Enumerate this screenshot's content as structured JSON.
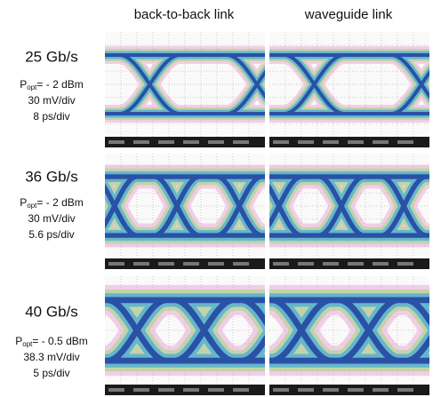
{
  "header": {
    "columns": [
      "back-to-back link",
      "waveguide link"
    ]
  },
  "rows": [
    {
      "rate": "25 Gb/s",
      "power_symbol": "P",
      "power_subscript": "opt",
      "power_value": "= - 2 dBm",
      "voltage_scale": "30 mV/div",
      "time_scale": "8 ps/div"
    },
    {
      "rate": "36 Gb/s",
      "power_symbol": "P",
      "power_subscript": "opt",
      "power_value": "= - 2 dBm",
      "voltage_scale": "30 mV/div",
      "time_scale": "5.6 ps/div"
    },
    {
      "rate": "40 Gb/s",
      "power_symbol": "P",
      "power_subscript": "opt",
      "power_value": "= - 0.5 dBm",
      "voltage_scale": "38.3 mV/div",
      "time_scale": "5 ps/div"
    }
  ]
}
